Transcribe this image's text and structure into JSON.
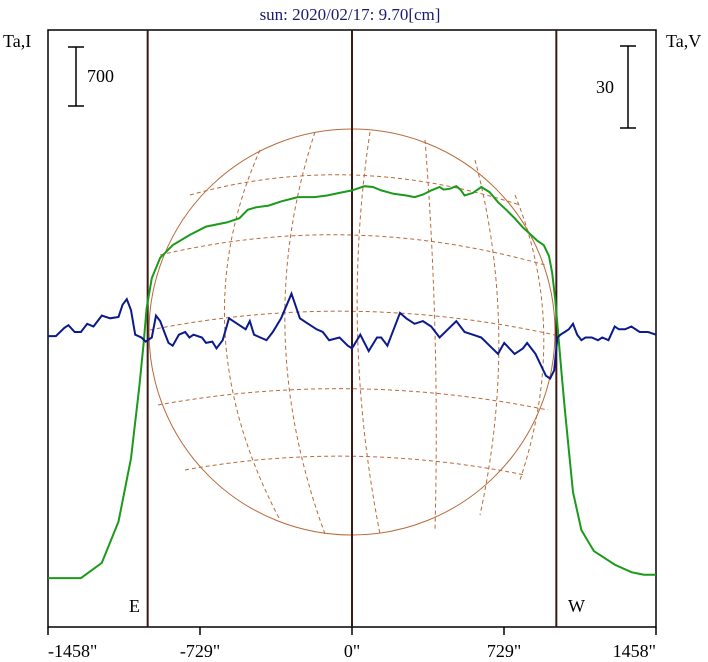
{
  "chart_data": {
    "type": "line",
    "title": "sun: 2020/02/17: 9.70[cm]",
    "left_axis_label": "Ta,I",
    "right_axis_label": "Ta,V",
    "left_scale_bar": "700",
    "right_scale_bar": "30",
    "east_label": "E",
    "west_label": "W",
    "x_ticks": [
      {
        "value": -1458,
        "label": "-1458\""
      },
      {
        "value": -729,
        "label": "-729\""
      },
      {
        "value": 0,
        "label": "0\""
      },
      {
        "value": 729,
        "label": "729\""
      },
      {
        "value": 1458,
        "label": "1458\""
      }
    ],
    "xlim": [
      -1458,
      1458
    ],
    "solar_limb": [
      -980,
      980
    ],
    "colors": {
      "I": "#1a9a1a",
      "V": "#0b1a8c",
      "limb_lines": "#3a1a14",
      "disk": "#b86a3a"
    },
    "series": [
      {
        "key": "I",
        "points": [
          [
            -1458,
            -2920
          ],
          [
            -1300,
            -2920
          ],
          [
            -1200,
            -2740
          ],
          [
            -1120,
            -2250
          ],
          [
            -1060,
            -1500
          ],
          [
            -1020,
            -650
          ],
          [
            -1000,
            -150
          ],
          [
            -985,
            280
          ],
          [
            -960,
            640
          ],
          [
            -920,
            880
          ],
          [
            -860,
            1030
          ],
          [
            -780,
            1150
          ],
          [
            -700,
            1250
          ],
          [
            -600,
            1300
          ],
          [
            -540,
            1350
          ],
          [
            -500,
            1450
          ],
          [
            -460,
            1480
          ],
          [
            -400,
            1500
          ],
          [
            -340,
            1550
          ],
          [
            -260,
            1600
          ],
          [
            -180,
            1600
          ],
          [
            -120,
            1620
          ],
          [
            -60,
            1650
          ],
          [
            0,
            1680
          ],
          [
            60,
            1730
          ],
          [
            100,
            1720
          ],
          [
            140,
            1680
          ],
          [
            200,
            1640
          ],
          [
            260,
            1620
          ],
          [
            300,
            1600
          ],
          [
            340,
            1630
          ],
          [
            380,
            1680
          ],
          [
            420,
            1720
          ],
          [
            440,
            1690
          ],
          [
            470,
            1700
          ],
          [
            500,
            1730
          ],
          [
            520,
            1690
          ],
          [
            540,
            1620
          ],
          [
            580,
            1650
          ],
          [
            620,
            1720
          ],
          [
            660,
            1660
          ],
          [
            700,
            1540
          ],
          [
            740,
            1450
          ],
          [
            780,
            1350
          ],
          [
            820,
            1240
          ],
          [
            860,
            1150
          ],
          [
            890,
            1080
          ],
          [
            920,
            1030
          ],
          [
            945,
            900
          ],
          [
            960,
            700
          ],
          [
            975,
            380
          ],
          [
            990,
            -50
          ],
          [
            1005,
            -480
          ],
          [
            1020,
            -900
          ],
          [
            1040,
            -1400
          ],
          [
            1060,
            -1900
          ],
          [
            1100,
            -2350
          ],
          [
            1160,
            -2600
          ],
          [
            1260,
            -2760
          ],
          [
            1340,
            -2850
          ],
          [
            1400,
            -2880
          ],
          [
            1458,
            -2880
          ]
        ]
      },
      {
        "key": "V",
        "points": [
          [
            -1458,
            -1.5
          ],
          [
            -1420,
            -1.5
          ],
          [
            -1380,
            1.5
          ],
          [
            -1360,
            2.5
          ],
          [
            -1330,
            0
          ],
          [
            -1300,
            0
          ],
          [
            -1270,
            3
          ],
          [
            -1240,
            2
          ],
          [
            -1200,
            6
          ],
          [
            -1160,
            5
          ],
          [
            -1120,
            5.5
          ],
          [
            -1100,
            10
          ],
          [
            -1080,
            12
          ],
          [
            -1060,
            8
          ],
          [
            -1040,
            -1
          ],
          [
            -1010,
            -2
          ],
          [
            -990,
            -3.5
          ],
          [
            -960,
            -2
          ],
          [
            -940,
            6
          ],
          [
            -920,
            4
          ],
          [
            -900,
            0
          ],
          [
            -880,
            -4
          ],
          [
            -860,
            -5
          ],
          [
            -830,
            -1
          ],
          [
            -800,
            0
          ],
          [
            -780,
            -2
          ],
          [
            -760,
            -1
          ],
          [
            -720,
            -2
          ],
          [
            -700,
            -4
          ],
          [
            -670,
            -3.5
          ],
          [
            -650,
            -6
          ],
          [
            -620,
            -3
          ],
          [
            -590,
            5
          ],
          [
            -550,
            3
          ],
          [
            -510,
            1
          ],
          [
            -490,
            4
          ],
          [
            -470,
            -1
          ],
          [
            -440,
            -2
          ],
          [
            -410,
            -3
          ],
          [
            -380,
            0
          ],
          [
            -340,
            5
          ],
          [
            -290,
            14
          ],
          [
            -250,
            5
          ],
          [
            -210,
            3
          ],
          [
            -170,
            1
          ],
          [
            -140,
            0
          ],
          [
            -110,
            -3
          ],
          [
            -60,
            -2
          ],
          [
            -20,
            -5
          ],
          [
            0,
            -6
          ],
          [
            40,
            -1
          ],
          [
            80,
            -7
          ],
          [
            120,
            -2
          ],
          [
            140,
            -2
          ],
          [
            170,
            -5
          ],
          [
            200,
            1
          ],
          [
            230,
            7
          ],
          [
            260,
            5
          ],
          [
            300,
            3
          ],
          [
            340,
            4
          ],
          [
            380,
            2
          ],
          [
            420,
            -2
          ],
          [
            460,
            1
          ],
          [
            500,
            4
          ],
          [
            540,
            0
          ],
          [
            580,
            -1
          ],
          [
            620,
            -2
          ],
          [
            660,
            -5
          ],
          [
            700,
            -8
          ],
          [
            730,
            -4
          ],
          [
            780,
            -8
          ],
          [
            820,
            -6
          ],
          [
            840,
            -4
          ],
          [
            880,
            -8
          ],
          [
            930,
            -16
          ],
          [
            950,
            -17
          ],
          [
            970,
            -14
          ],
          [
            985,
            -2
          ],
          [
            1000,
            -1
          ],
          [
            1020,
            0
          ],
          [
            1040,
            1
          ],
          [
            1060,
            3
          ],
          [
            1080,
            -1
          ],
          [
            1100,
            -3
          ],
          [
            1120,
            -2
          ],
          [
            1150,
            -2
          ],
          [
            1180,
            -3
          ],
          [
            1200,
            -2
          ],
          [
            1230,
            -3
          ],
          [
            1260,
            2
          ],
          [
            1280,
            1
          ],
          [
            1310,
            1
          ],
          [
            1340,
            2
          ],
          [
            1380,
            0
          ],
          [
            1420,
            0
          ],
          [
            1458,
            -1
          ]
        ]
      }
    ]
  }
}
